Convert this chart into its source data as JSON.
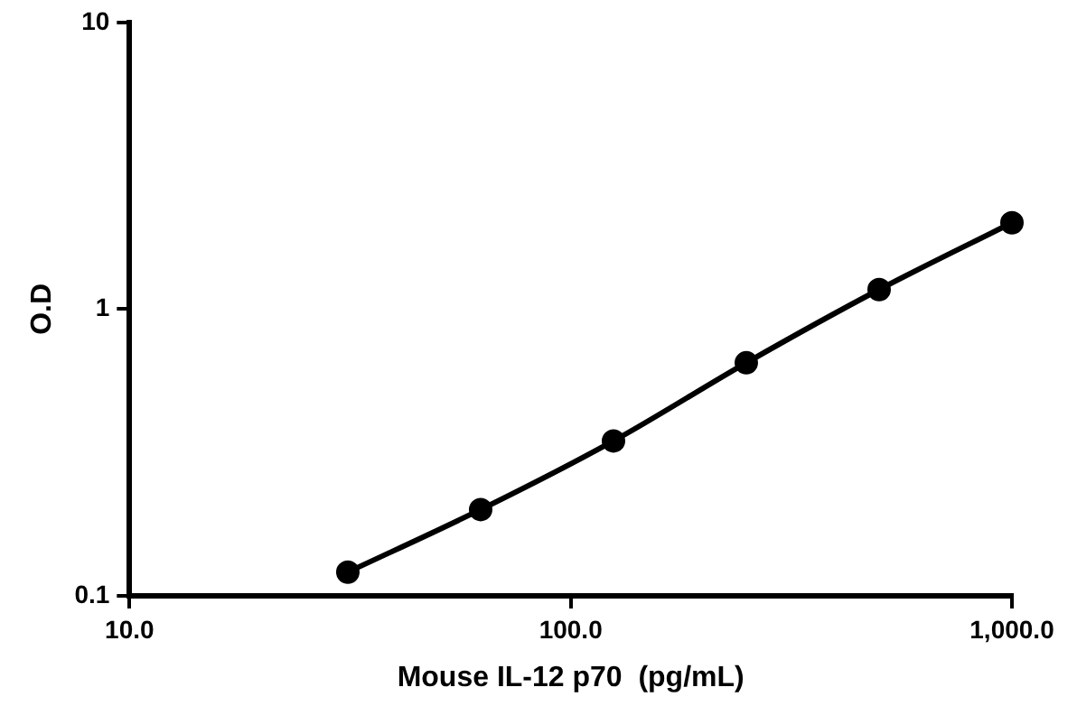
{
  "chart_data": {
    "type": "line",
    "xlabel": "Mouse IL-12 p70  (pg/mL)",
    "ylabel": "O.D",
    "x": [
      31.25,
      62.5,
      125,
      250,
      500,
      1000
    ],
    "series": [
      {
        "color": "#000000",
        "values": [
          0.121,
          0.2,
          0.347,
          0.65,
          1.17,
          2.0
        ]
      }
    ],
    "log": "xy",
    "xlim": [
      10,
      1000
    ],
    "ylim": [
      0.1,
      10
    ],
    "xticks": [
      {
        "value": 10,
        "label": "10.0"
      },
      {
        "value": 100,
        "label": "100.0"
      },
      {
        "value": 1000,
        "label": "1,000.0"
      }
    ],
    "yticks": [
      0.1,
      1,
      10
    ],
    "grid": false,
    "legend": false,
    "marker": "circle",
    "line_style": "solid"
  }
}
